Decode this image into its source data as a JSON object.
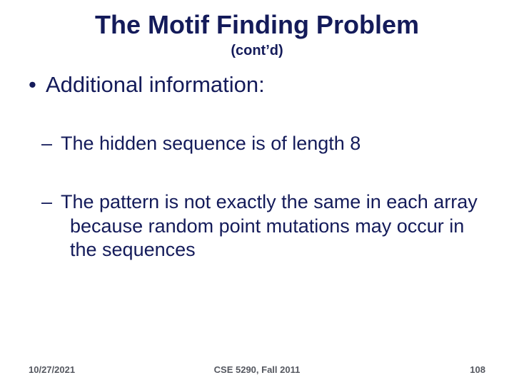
{
  "colors": {
    "text_primary": "#141b5a",
    "text_footer": "#555860",
    "background": "#ffffff"
  },
  "typography": {
    "title_fontsize": 36,
    "subtitle_fontsize": 20,
    "bullet1_fontsize": 31,
    "bullet2_fontsize": 27,
    "footer_fontsize": 13,
    "font_family": "Arial"
  },
  "title": "The Motif Finding Problem",
  "subtitle": "(cont’d)",
  "bullets": {
    "level1": {
      "marker": "•",
      "text": "Additional information:"
    },
    "level2": [
      {
        "marker": "–",
        "text": "The hidden sequence is of length 8"
      },
      {
        "marker": "–",
        "text": "The pattern is not exactly the same in each array because random point mutations may occur in the sequences"
      }
    ]
  },
  "footer": {
    "date": "10/27/2021",
    "course": "CSE 5290, Fall 2011",
    "page": "108"
  }
}
